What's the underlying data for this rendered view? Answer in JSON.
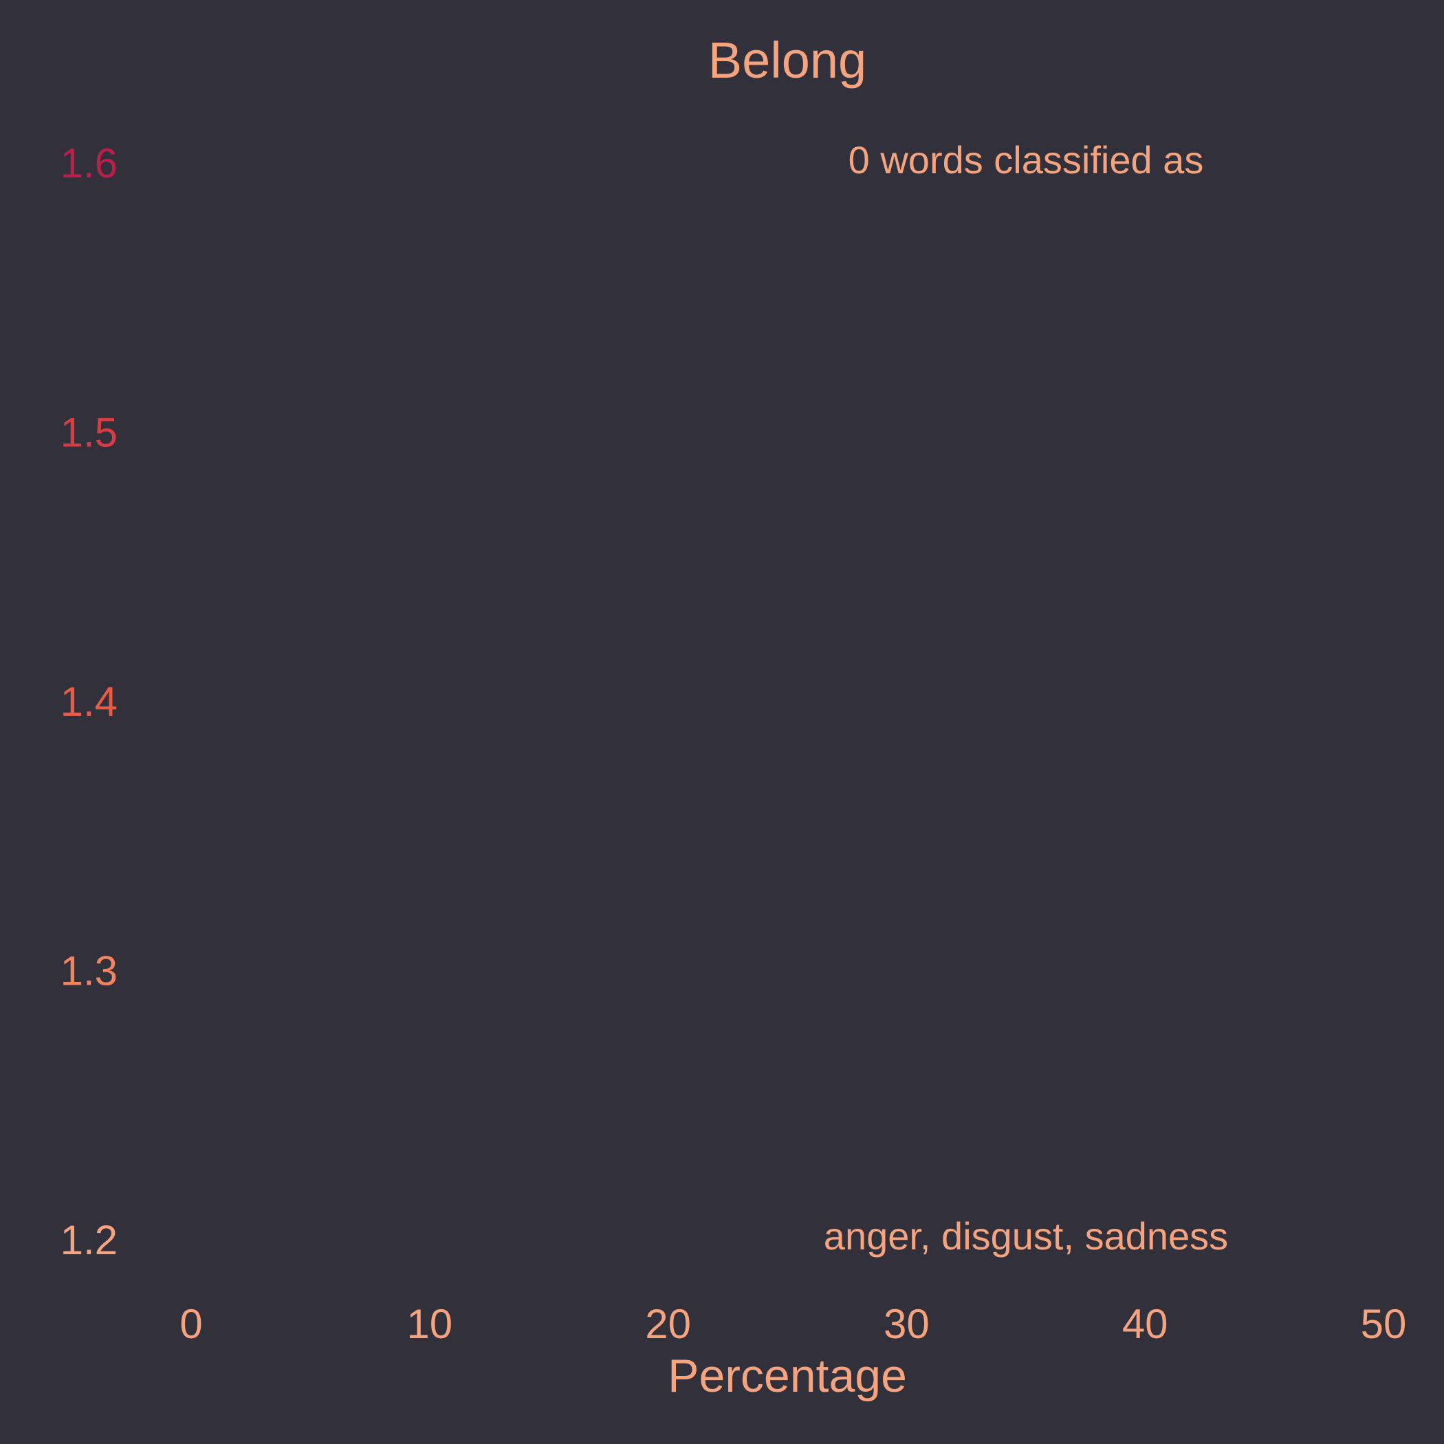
{
  "chart_data": {
    "type": "bar",
    "title": "Belong",
    "xlabel": "Percentage",
    "ylabel": "",
    "xlim": [
      0,
      50
    ],
    "ylim": [
      1.2,
      1.6
    ],
    "x_ticks": [
      "0",
      "10",
      "20",
      "30",
      "40",
      "50"
    ],
    "y_ticks": [
      "1.2",
      "1.3",
      "1.4",
      "1.5",
      "1.6"
    ],
    "y_tick_colors": [
      "#f5a47f",
      "#f3845f",
      "#ea5b45",
      "#d83d44",
      "#bd1f4b"
    ],
    "categories": [],
    "values": [],
    "annotations": [
      "0 words classified as",
      "anger, disgust, sadness"
    ],
    "grid": false,
    "legend": "none"
  },
  "colors": {
    "background": "#31303b",
    "text": "#f5a47f"
  }
}
